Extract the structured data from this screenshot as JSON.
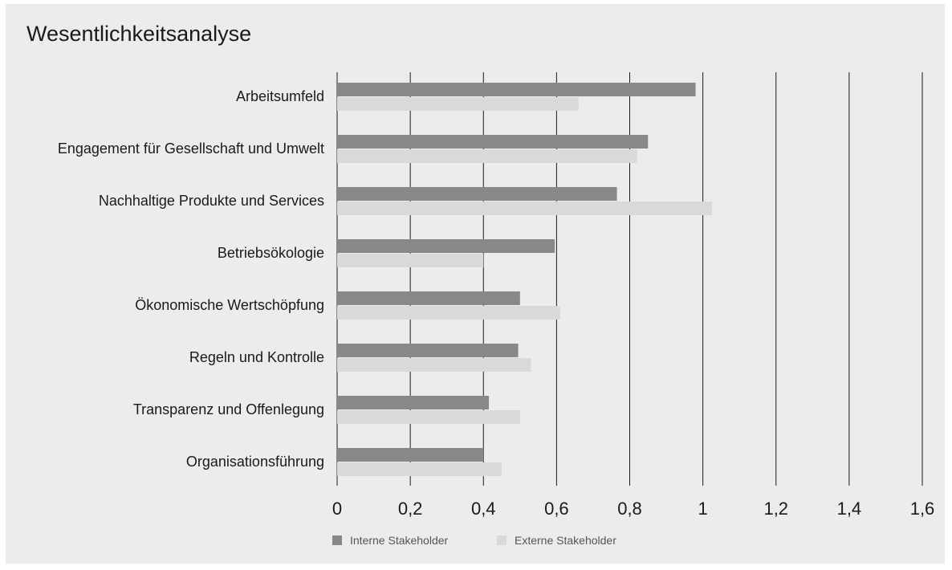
{
  "chart_data": {
    "type": "bar",
    "orientation": "horizontal",
    "title": "Wesentlichkeitsanalyse",
    "categories": [
      "Arbeitsumfeld",
      "Engagement für Gesellschaft und Umwelt",
      "Nachhaltige Produkte und Services",
      "Betriebsökologie",
      "Ökonomische Wertschöpfung",
      "Regeln und Kontrolle",
      "Transparenz und Offenlegung",
      "Organisationsführung"
    ],
    "series": [
      {
        "name": "Interne Stakeholder",
        "color": "#888888",
        "values": [
          0.98,
          0.85,
          0.765,
          0.595,
          0.5,
          0.495,
          0.415,
          0.4
        ]
      },
      {
        "name": "Externe Stakeholder",
        "color": "#d9d9d9",
        "values": [
          0.66,
          0.82,
          1.025,
          0.4,
          0.61,
          0.53,
          0.5,
          0.45
        ]
      }
    ],
    "xlim": [
      0,
      1.6
    ],
    "ticks": [
      0,
      0.2,
      0.4,
      0.6,
      0.8,
      1,
      1.2,
      1.4,
      1.6
    ],
    "tick_labels": [
      "0",
      "0,2",
      "0,4",
      "0,6",
      "0,8",
      "1",
      "1,2",
      "1,4",
      "1,6"
    ],
    "grid": "vertical",
    "legend_position": "bottom"
  }
}
